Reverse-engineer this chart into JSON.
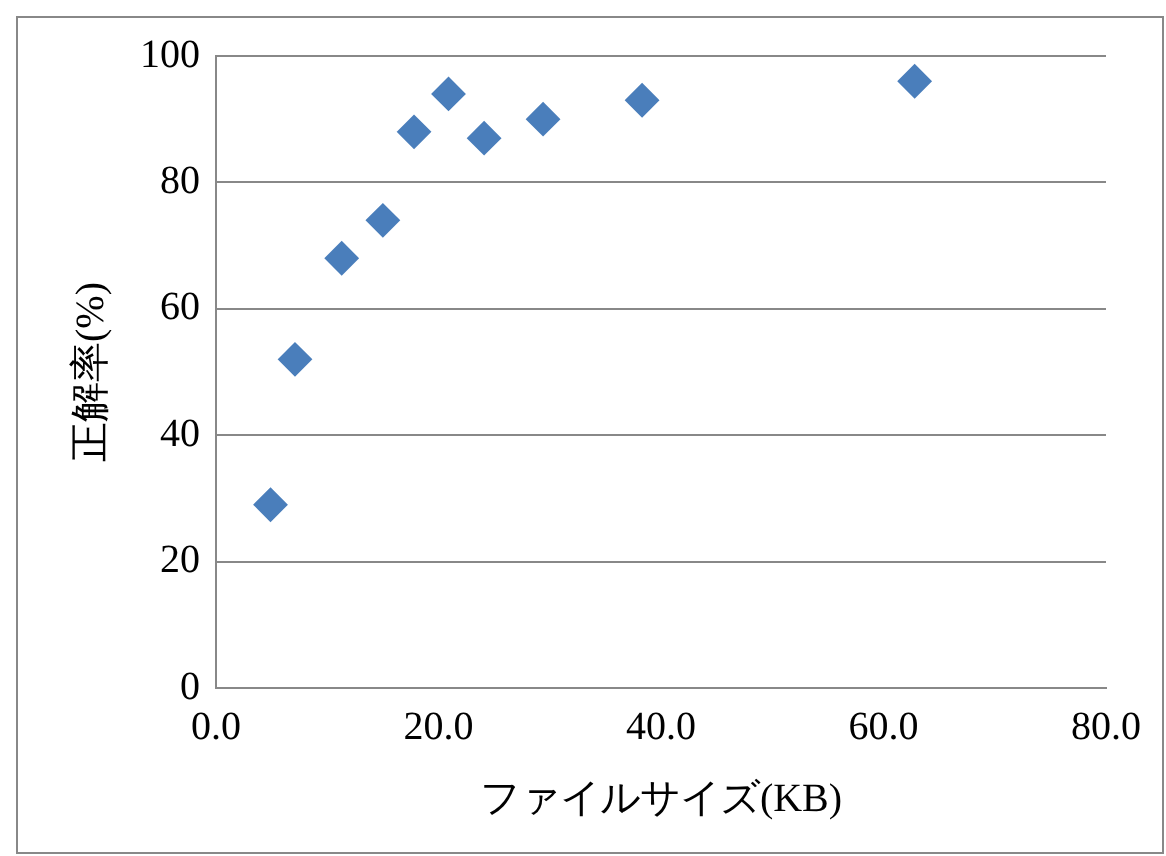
{
  "chart_data": {
    "type": "scatter",
    "xlabel": "ファイルサイズ(KB)",
    "ylabel": "正解率(%)",
    "x": [
      4.9,
      7.1,
      11.3,
      15,
      17.8,
      20.9,
      24.1,
      29.4,
      38.3,
      62.8
    ],
    "series": [
      {
        "color": "#4a7ebb",
        "values": [
          29,
          52,
          68,
          74,
          88,
          94,
          87,
          90,
          93,
          96
        ]
      }
    ],
    "xlim": [
      0,
      80
    ],
    "xticks": [
      {
        "value": 0,
        "label": "0.0"
      },
      {
        "value": 20,
        "label": "20.0"
      },
      {
        "value": 40,
        "label": "40.0"
      },
      {
        "value": 60,
        "label": "60.0"
      },
      {
        "value": 80,
        "label": "80.0"
      }
    ],
    "ylim": [
      0,
      100
    ],
    "yticks": [
      0,
      20,
      40,
      60,
      80,
      100
    ],
    "grid": "y",
    "legend": false,
    "marker": "diamond"
  }
}
